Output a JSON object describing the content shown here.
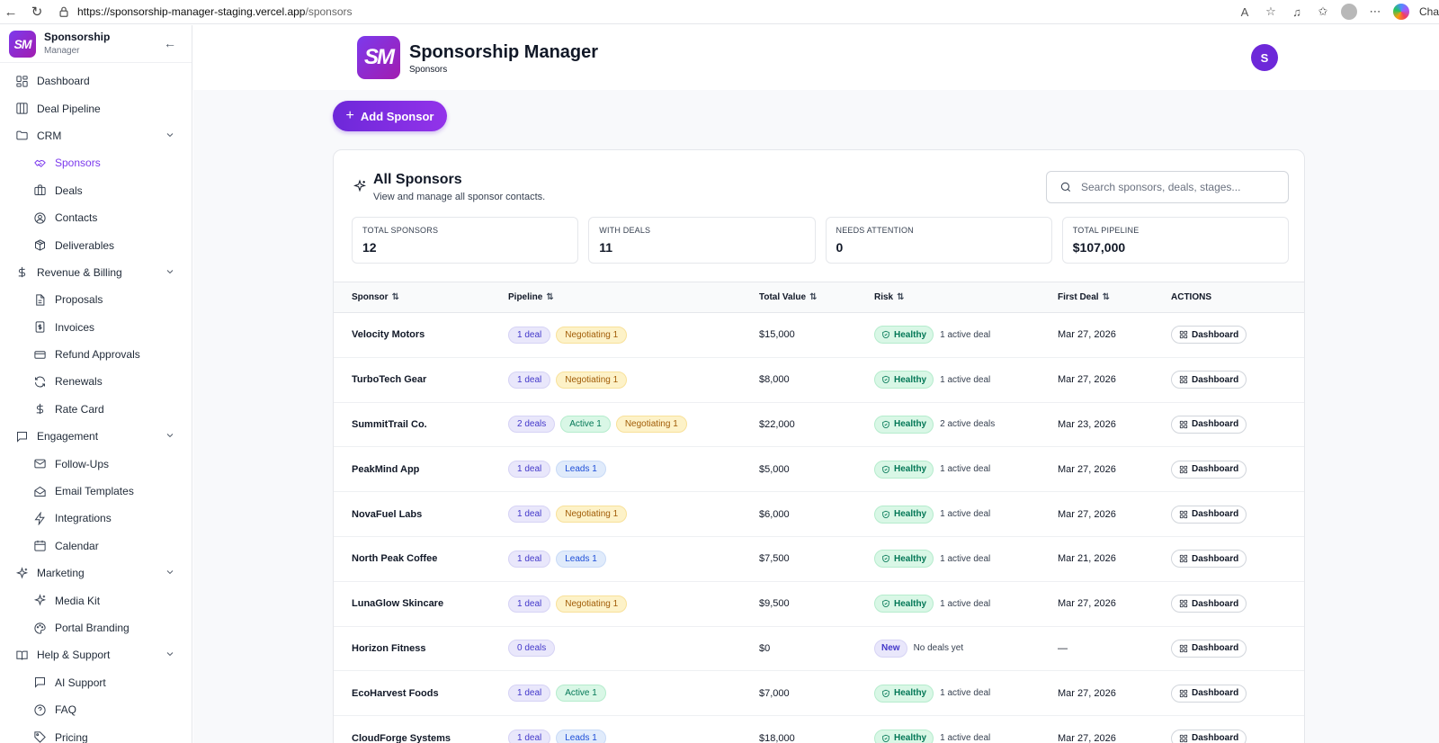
{
  "browser": {
    "url_host": "https://sponsorship-manager-staging.vercel.app",
    "url_path": "/sponsors",
    "edge_label": "Cha"
  },
  "sidebar": {
    "brand_logo": "SM",
    "brand_name": "Sponsorship",
    "brand_sub": "Manager",
    "items": [
      {
        "label": "Dashboard",
        "icon": "layout-grid-icon",
        "level": "top"
      },
      {
        "label": "Deal Pipeline",
        "icon": "columns-icon",
        "level": "top"
      },
      {
        "label": "CRM",
        "icon": "folder-icon",
        "level": "group"
      },
      {
        "label": "Sponsors",
        "icon": "handshake-icon",
        "level": "sub",
        "active": true
      },
      {
        "label": "Deals",
        "icon": "briefcase-icon",
        "level": "sub"
      },
      {
        "label": "Contacts",
        "icon": "user-circle-icon",
        "level": "sub"
      },
      {
        "label": "Deliverables",
        "icon": "package-icon",
        "level": "sub"
      },
      {
        "label": "Revenue & Billing",
        "icon": "dollar-icon",
        "level": "group"
      },
      {
        "label": "Proposals",
        "icon": "file-text-icon",
        "level": "sub"
      },
      {
        "label": "Invoices",
        "icon": "receipt-icon",
        "level": "sub"
      },
      {
        "label": "Refund Approvals",
        "icon": "credit-card-icon",
        "level": "sub"
      },
      {
        "label": "Renewals",
        "icon": "refresh-icon",
        "level": "sub"
      },
      {
        "label": "Rate Card",
        "icon": "dollar-icon",
        "level": "sub"
      },
      {
        "label": "Engagement",
        "icon": "message-square-icon",
        "level": "group"
      },
      {
        "label": "Follow-Ups",
        "icon": "mail-icon",
        "level": "sub"
      },
      {
        "label": "Email Templates",
        "icon": "mail-open-icon",
        "level": "sub"
      },
      {
        "label": "Integrations",
        "icon": "zap-icon",
        "level": "sub"
      },
      {
        "label": "Calendar",
        "icon": "calendar-icon",
        "level": "sub"
      },
      {
        "label": "Marketing",
        "icon": "sparkles-icon",
        "level": "group"
      },
      {
        "label": "Media Kit",
        "icon": "sparkles-icon",
        "level": "sub"
      },
      {
        "label": "Portal Branding",
        "icon": "palette-icon",
        "level": "sub"
      },
      {
        "label": "Help & Support",
        "icon": "book-open-icon",
        "level": "group"
      },
      {
        "label": "AI Support",
        "icon": "message-square-icon",
        "level": "sub"
      },
      {
        "label": "FAQ",
        "icon": "help-circle-icon",
        "level": "sub"
      },
      {
        "label": "Pricing",
        "icon": "tag-icon",
        "level": "sub"
      }
    ]
  },
  "header": {
    "logo": "SM",
    "title": "Sponsorship Manager",
    "subtitle": "Sponsors",
    "avatar_initial": "S"
  },
  "toolbar": {
    "add_label": "Add Sponsor"
  },
  "card": {
    "title": "All Sponsors",
    "description": "View and manage all sponsor contacts.",
    "search_placeholder": "Search sponsors, deals, stages..."
  },
  "stats": [
    {
      "label": "TOTAL SPONSORS",
      "value": "12"
    },
    {
      "label": "WITH DEALS",
      "value": "11"
    },
    {
      "label": "NEEDS ATTENTION",
      "value": "0"
    },
    {
      "label": "TOTAL PIPELINE",
      "value": "$107,000"
    }
  ],
  "table": {
    "columns": [
      "Sponsor",
      "Pipeline",
      "Total Value",
      "Risk",
      "First Deal",
      "ACTIONS"
    ],
    "action_label": "Dashboard",
    "rows": [
      {
        "sponsor": "Velocity Motors",
        "chips": [
          {
            "text": "1 deal",
            "kind": "deal"
          },
          {
            "text": "Negotiating 1",
            "kind": "neg"
          }
        ],
        "value": "$15,000",
        "risk": "Healthy",
        "risk_kind": "healthy",
        "note": "1 active deal",
        "first": "Mar 27, 2026"
      },
      {
        "sponsor": "TurboTech Gear",
        "chips": [
          {
            "text": "1 deal",
            "kind": "deal"
          },
          {
            "text": "Negotiating 1",
            "kind": "neg"
          }
        ],
        "value": "$8,000",
        "risk": "Healthy",
        "risk_kind": "healthy",
        "note": "1 active deal",
        "first": "Mar 27, 2026"
      },
      {
        "sponsor": "SummitTrail Co.",
        "chips": [
          {
            "text": "2 deals",
            "kind": "deal"
          },
          {
            "text": "Active 1",
            "kind": "act"
          },
          {
            "text": "Negotiating 1",
            "kind": "neg"
          }
        ],
        "value": "$22,000",
        "risk": "Healthy",
        "risk_kind": "healthy",
        "note": "2 active deals",
        "first": "Mar 23, 2026"
      },
      {
        "sponsor": "PeakMind App",
        "chips": [
          {
            "text": "1 deal",
            "kind": "deal"
          },
          {
            "text": "Leads 1",
            "kind": "lead"
          }
        ],
        "value": "$5,000",
        "risk": "Healthy",
        "risk_kind": "healthy",
        "note": "1 active deal",
        "first": "Mar 27, 2026"
      },
      {
        "sponsor": "NovaFuel Labs",
        "chips": [
          {
            "text": "1 deal",
            "kind": "deal"
          },
          {
            "text": "Negotiating 1",
            "kind": "neg"
          }
        ],
        "value": "$6,000",
        "risk": "Healthy",
        "risk_kind": "healthy",
        "note": "1 active deal",
        "first": "Mar 27, 2026"
      },
      {
        "sponsor": "North Peak Coffee",
        "chips": [
          {
            "text": "1 deal",
            "kind": "deal"
          },
          {
            "text": "Leads 1",
            "kind": "lead"
          }
        ],
        "value": "$7,500",
        "risk": "Healthy",
        "risk_kind": "healthy",
        "note": "1 active deal",
        "first": "Mar 21, 2026"
      },
      {
        "sponsor": "LunaGlow Skincare",
        "chips": [
          {
            "text": "1 deal",
            "kind": "deal"
          },
          {
            "text": "Negotiating 1",
            "kind": "neg"
          }
        ],
        "value": "$9,500",
        "risk": "Healthy",
        "risk_kind": "healthy",
        "note": "1 active deal",
        "first": "Mar 27, 2026"
      },
      {
        "sponsor": "Horizon Fitness",
        "chips": [
          {
            "text": "0 deals",
            "kind": "deal"
          }
        ],
        "value": "$0",
        "risk": "New",
        "risk_kind": "new",
        "note": "No deals yet",
        "first": "—"
      },
      {
        "sponsor": "EcoHarvest Foods",
        "chips": [
          {
            "text": "1 deal",
            "kind": "deal"
          },
          {
            "text": "Active 1",
            "kind": "act"
          }
        ],
        "value": "$7,000",
        "risk": "Healthy",
        "risk_kind": "healthy",
        "note": "1 active deal",
        "first": "Mar 27, 2026"
      },
      {
        "sponsor": "CloudForge Systems",
        "chips": [
          {
            "text": "1 deal",
            "kind": "deal"
          },
          {
            "text": "Leads 1",
            "kind": "lead"
          }
        ],
        "value": "$18,000",
        "risk": "Healthy",
        "risk_kind": "healthy",
        "note": "1 active deal",
        "first": "Mar 27, 2026"
      }
    ]
  }
}
